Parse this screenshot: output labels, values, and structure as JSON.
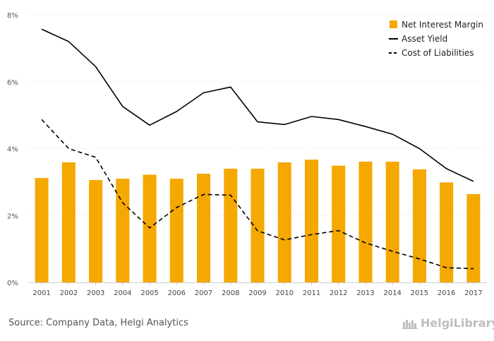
{
  "chart_data": {
    "type": "bar",
    "title": "",
    "xlabel": "",
    "ylabel": "",
    "categories": [
      "2001",
      "2002",
      "2003",
      "2004",
      "2005",
      "2006",
      "2007",
      "2008",
      "2009",
      "2010",
      "2011",
      "2012",
      "2013",
      "2014",
      "2015",
      "2016",
      "2017"
    ],
    "ylim": [
      0,
      8
    ],
    "yticks": [
      "0%",
      "2%",
      "4%",
      "6%",
      "8%"
    ],
    "grid": true,
    "legend_position": "top-right",
    "series": [
      {
        "name": "Net Interest Margin",
        "kind": "bar",
        "color": "#f5a800",
        "values": [
          3.12,
          3.59,
          3.06,
          3.1,
          3.22,
          3.1,
          3.25,
          3.4,
          3.4,
          3.59,
          3.67,
          3.49,
          3.61,
          3.61,
          3.38,
          2.99,
          2.64
        ]
      },
      {
        "name": "Asset Yield",
        "kind": "line",
        "style": "solid",
        "color": "#000000",
        "values": [
          7.57,
          7.2,
          6.45,
          5.26,
          4.7,
          5.11,
          5.67,
          5.84,
          4.8,
          4.72,
          4.96,
          4.87,
          4.66,
          4.43,
          4.0,
          3.4,
          3.02
        ]
      },
      {
        "name": "Cost of Liabilities",
        "kind": "line",
        "style": "dashed",
        "color": "#000000",
        "values": [
          4.87,
          4.0,
          3.74,
          2.38,
          1.63,
          2.24,
          2.63,
          2.61,
          1.54,
          1.27,
          1.43,
          1.55,
          1.18,
          0.93,
          0.7,
          0.44,
          0.41
        ]
      }
    ]
  },
  "footer": {
    "source": "Source: Company Data, Helgi Analytics",
    "brand": "HelgiLibrary"
  }
}
